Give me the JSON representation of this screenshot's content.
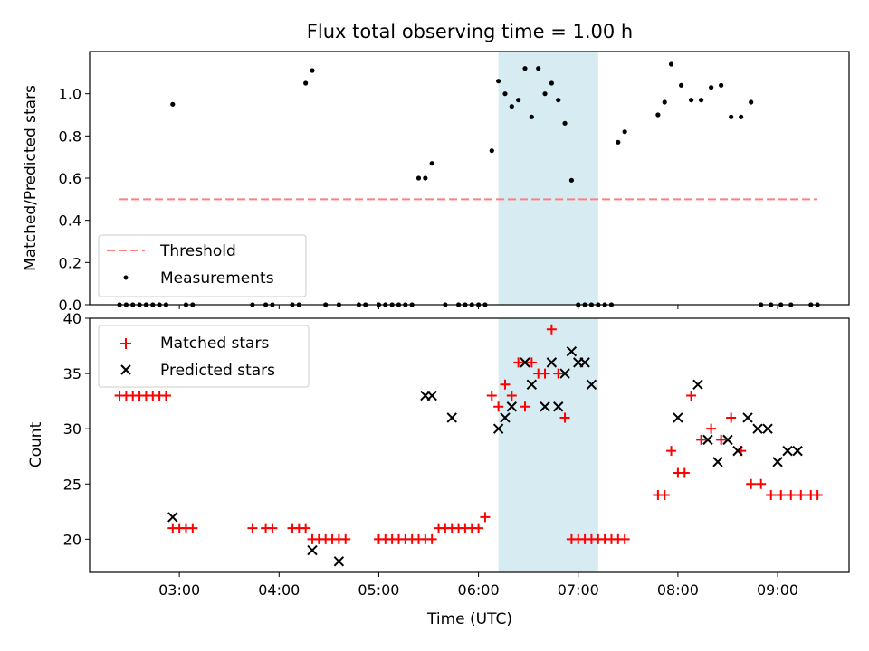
{
  "chart_data": [
    {
      "type": "scatter",
      "title": "Flux total observing time = 1.00 h",
      "xlabel": "",
      "ylabel": "Matched/Predicted stars",
      "ylim": [
        0,
        1.2
      ],
      "yticks": [
        0.0,
        0.2,
        0.4,
        0.6,
        0.8,
        1.0
      ],
      "ytick_labels": [
        "0.0",
        "0.2",
        "0.4",
        "0.6",
        "0.8",
        "1.0"
      ],
      "x_unit": "time (UTC)",
      "xlim": [
        "02:06",
        "09:43"
      ],
      "xtick_labels_shown": false,
      "highlight_span": {
        "start": "06:12",
        "end": "07:12",
        "color": "#add8e6"
      },
      "threshold": {
        "name": "Threshold",
        "value": 0.5,
        "x_start": "02:24",
        "x_end": "09:24",
        "color": "#ff7f7f",
        "style": "dashed"
      },
      "legend": {
        "location": "lower-left",
        "entries": [
          "Threshold",
          "Measurements"
        ]
      },
      "series": [
        {
          "name": "Measurements",
          "color": "#000000",
          "marker": "dot",
          "x": [
            "02:24",
            "02:28",
            "02:32",
            "02:36",
            "02:40",
            "02:44",
            "02:48",
            "02:52",
            "02:56",
            "03:04",
            "03:08",
            "03:44",
            "03:52",
            "03:56",
            "04:08",
            "04:12",
            "04:16",
            "04:20",
            "04:28",
            "04:36",
            "04:48",
            "04:52",
            "05:00",
            "05:04",
            "05:08",
            "05:12",
            "05:16",
            "05:20",
            "05:24",
            "05:28",
            "05:32",
            "05:40",
            "05:48",
            "05:52",
            "05:56",
            "06:00",
            "06:04",
            "06:08",
            "06:12",
            "06:16",
            "06:20",
            "06:24",
            "06:28",
            "06:32",
            "06:36",
            "06:40",
            "06:44",
            "06:48",
            "06:52",
            "06:56",
            "07:00",
            "07:04",
            "07:08",
            "07:12",
            "07:16",
            "07:20",
            "07:24",
            "07:28",
            "07:48",
            "07:52",
            "07:56",
            "08:02",
            "08:08",
            "08:14",
            "08:20",
            "08:26",
            "08:32",
            "08:38",
            "08:44",
            "08:50",
            "08:56",
            "09:02",
            "09:08",
            "09:20",
            "09:24"
          ],
          "y": [
            0,
            0,
            0,
            0,
            0,
            0,
            0,
            0,
            0.95,
            0,
            0,
            0,
            0,
            0,
            0,
            0,
            1.05,
            1.11,
            0,
            0,
            0,
            0,
            0,
            0,
            0,
            0,
            0,
            0,
            0.6,
            0.6,
            0.67,
            0,
            0,
            0,
            0,
            0,
            0,
            0.73,
            1.06,
            1.0,
            0.94,
            0.97,
            1.12,
            0.89,
            1.12,
            1.0,
            1.05,
            0.97,
            0.86,
            0.59,
            0,
            0,
            0,
            0,
            0,
            0,
            0.77,
            0.82,
            0.9,
            0.96,
            1.14,
            1.04,
            0.97,
            0.97,
            1.03,
            1.04,
            0.89,
            0.89,
            0.96,
            0,
            0,
            0,
            0,
            0,
            0
          ]
        }
      ]
    },
    {
      "type": "scatter",
      "title": "",
      "xlabel": "Time (UTC)",
      "ylabel": "Count",
      "ylim": [
        17,
        40
      ],
      "yticks": [
        20,
        25,
        30,
        35,
        40
      ],
      "ytick_labels": [
        "20",
        "25",
        "30",
        "35",
        "40"
      ],
      "x_unit": "time (UTC)",
      "xlim": [
        "02:06",
        "09:43"
      ],
      "xticks": [
        "03:00",
        "04:00",
        "05:00",
        "06:00",
        "07:00",
        "08:00",
        "09:00"
      ],
      "xtick_labels": [
        "03:00",
        "04:00",
        "05:00",
        "06:00",
        "07:00",
        "08:00",
        "09:00"
      ],
      "highlight_span": {
        "start": "06:12",
        "end": "07:12",
        "color": "#add8e6"
      },
      "legend": {
        "location": "upper-left",
        "entries": [
          "Matched stars",
          "Predicted stars"
        ]
      },
      "series": [
        {
          "name": "Matched stars",
          "color": "#ff0000",
          "marker": "plus",
          "x": [
            "02:24",
            "02:28",
            "02:32",
            "02:36",
            "02:40",
            "02:44",
            "02:48",
            "02:52",
            "02:56",
            "03:00",
            "03:04",
            "03:08",
            "03:44",
            "03:52",
            "03:56",
            "04:08",
            "04:12",
            "04:16",
            "04:20",
            "04:24",
            "04:28",
            "04:32",
            "04:36",
            "04:40",
            "05:00",
            "05:04",
            "05:08",
            "05:12",
            "05:16",
            "05:20",
            "05:24",
            "05:28",
            "05:32",
            "05:36",
            "05:40",
            "05:44",
            "05:48",
            "05:52",
            "05:56",
            "06:00",
            "06:04",
            "06:08",
            "06:12",
            "06:16",
            "06:20",
            "06:24",
            "06:28",
            "06:32",
            "06:36",
            "06:40",
            "06:44",
            "06:48",
            "06:52",
            "06:56",
            "07:00",
            "07:04",
            "07:08",
            "07:12",
            "07:16",
            "07:20",
            "07:24",
            "07:28",
            "07:48",
            "07:52",
            "07:56",
            "08:00",
            "08:04",
            "08:08",
            "08:14",
            "08:20",
            "08:26",
            "08:32",
            "08:38",
            "08:44",
            "08:50",
            "08:56",
            "09:02",
            "09:08",
            "09:14",
            "09:20",
            "09:24"
          ],
          "y": [
            33,
            33,
            33,
            33,
            33,
            33,
            33,
            33,
            21,
            21,
            21,
            21,
            21,
            21,
            21,
            21,
            21,
            21,
            20,
            20,
            20,
            20,
            20,
            20,
            20,
            20,
            20,
            20,
            20,
            20,
            20,
            20,
            20,
            21,
            21,
            21,
            21,
            21,
            21,
            21,
            22,
            33,
            32,
            34,
            33,
            36,
            32,
            36,
            35,
            35,
            39,
            35,
            31,
            20,
            20,
            20,
            20,
            20,
            20,
            20,
            20,
            20,
            24,
            24,
            28,
            26,
            26,
            33,
            29,
            30,
            29,
            31,
            28,
            25,
            25,
            24,
            24,
            24,
            24,
            24,
            24
          ]
        },
        {
          "name": "Predicted stars",
          "color": "#000000",
          "marker": "x",
          "x": [
            "02:56",
            "04:20",
            "04:36",
            "05:28",
            "05:32",
            "05:44",
            "06:12",
            "06:16",
            "06:20",
            "06:28",
            "06:32",
            "06:40",
            "06:44",
            "06:48",
            "06:52",
            "06:56",
            "07:00",
            "07:04",
            "07:08",
            "08:00",
            "08:12",
            "08:18",
            "08:24",
            "08:30",
            "08:36",
            "08:42",
            "08:48",
            "08:54",
            "09:00",
            "09:06",
            "09:12"
          ],
          "y": [
            22,
            19,
            18,
            33,
            33,
            31,
            30,
            31,
            32,
            36,
            34,
            32,
            36,
            32,
            35,
            37,
            36,
            36,
            34,
            31,
            34,
            29,
            27,
            29,
            28,
            31,
            30,
            30,
            27,
            28,
            28
          ]
        }
      ]
    }
  ]
}
